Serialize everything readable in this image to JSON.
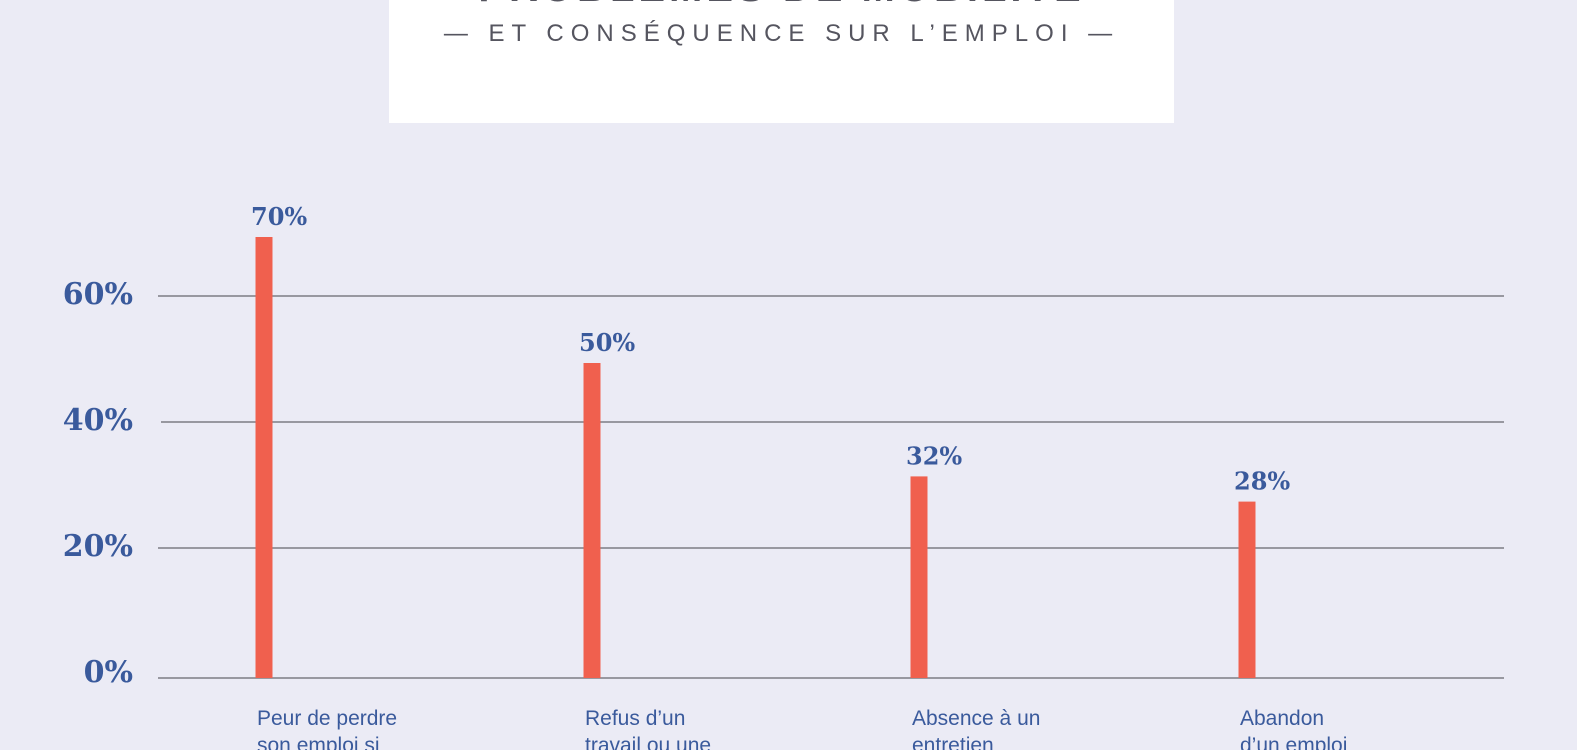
{
  "header": {
    "title": "PROBLÈMES DE MOBILITÉ",
    "subtitle": "— ET CONSÉQUENCE SUR L’EMPLOI —"
  },
  "colors": {
    "background": "#ebebf5",
    "bar": "#f0604e",
    "text": "#3a5a9c",
    "title": "#55555f",
    "grid": "#44444c"
  },
  "chart_data": {
    "type": "bar",
    "categories": [
      [
        "Peur de perdre",
        "son emploi si"
      ],
      [
        "Refus d’un",
        "travail ou une"
      ],
      [
        "Absence à un",
        "entretien"
      ],
      [
        "Abandon",
        "d’un emploi"
      ]
    ],
    "values": [
      70,
      50,
      32,
      28
    ],
    "data_labels": [
      "70%",
      "50%",
      "32%",
      "28%"
    ],
    "yticks": [
      0,
      20,
      40,
      60
    ],
    "ytick_labels": [
      "0%",
      "20%",
      "40%",
      "60%"
    ],
    "ylim": [
      0,
      70
    ],
    "grid": true,
    "legend": "none"
  }
}
